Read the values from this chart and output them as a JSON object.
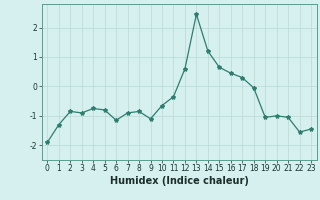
{
  "x": [
    0,
    1,
    2,
    3,
    4,
    5,
    6,
    7,
    8,
    9,
    10,
    11,
    12,
    13,
    14,
    15,
    16,
    17,
    18,
    19,
    20,
    21,
    22,
    23
  ],
  "y": [
    -1.9,
    -1.3,
    -0.85,
    -0.9,
    -0.75,
    -0.8,
    -1.15,
    -0.9,
    -0.85,
    -1.1,
    -0.65,
    -0.35,
    0.6,
    2.45,
    1.2,
    0.65,
    0.45,
    0.3,
    -0.05,
    -1.05,
    -1.0,
    -1.05,
    -1.55,
    -1.45
  ],
  "line_color": "#2e7d6e",
  "marker": "*",
  "marker_size": 3,
  "background_color": "#d6f0ef",
  "grid_color": "#b8d8d4",
  "title": "",
  "xlabel": "Humidex (Indice chaleur)",
  "ylabel": "",
  "xlim": [
    -0.5,
    23.5
  ],
  "ylim": [
    -2.5,
    2.8
  ],
  "yticks": [
    -2,
    -1,
    0,
    1,
    2
  ],
  "xticks": [
    0,
    1,
    2,
    3,
    4,
    5,
    6,
    7,
    8,
    9,
    10,
    11,
    12,
    13,
    14,
    15,
    16,
    17,
    18,
    19,
    20,
    21,
    22,
    23
  ],
  "tick_label_fontsize": 5.5,
  "xlabel_fontsize": 7,
  "line_width": 0.9,
  "spine_color": "#5a9e90"
}
